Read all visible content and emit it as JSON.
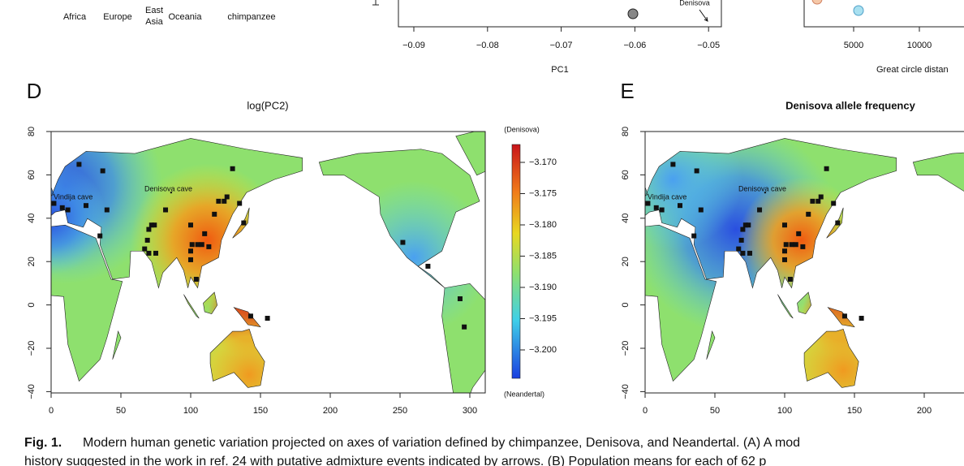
{
  "top": {
    "legend": [
      "Africa",
      "Europe",
      [
        "East",
        "Asia"
      ],
      "Oceania",
      "chimpanzee"
    ],
    "pc_panel": {
      "ticks": [
        "−0.09",
        "−0.08",
        "−0.07",
        "−0.06",
        "−0.05"
      ],
      "axis_label": "PC1",
      "annotation": "Denisova"
    },
    "dist_panel": {
      "ticks": [
        "5000",
        "10000"
      ],
      "axis_label": "Great circle distan"
    }
  },
  "panels": [
    {
      "letter": "D",
      "title": "log(PC2)",
      "x_ticks": [
        "0",
        "50",
        "100",
        "150",
        "200",
        "250",
        "300"
      ],
      "y_ticks": [
        "80",
        "60",
        "40",
        "20",
        "0",
        "−20",
        "−40"
      ],
      "annotations": [
        "Vindija cave",
        "Denisova cave"
      ],
      "colorbar": {
        "top_label": "(Denisova)",
        "ticks": [
          "−3.170",
          "−3.175",
          "−3.180",
          "−3.185",
          "−3.190",
          "−3.195",
          "−3.200"
        ],
        "bottom_label": "(Neandertal)"
      }
    },
    {
      "letter": "E",
      "title": "Denisova allele frequency",
      "x_ticks": [
        "0",
        "50",
        "100",
        "150",
        "200"
      ],
      "y_ticks": [
        "80",
        "60",
        "40",
        "20",
        "0",
        "−20",
        "−40"
      ],
      "annotations": [
        "Vindija cave",
        "Denisova cave"
      ]
    }
  ],
  "caption": {
    "label": "Fig. 1.",
    "lines": [
      "Modern human genetic variation projected on axes of variation defined by chimpanzee, Denisova, and Neandertal. (A) A mod",
      "history suggested in the work in ref. 24 with putative admixture events indicated by arrows. (B) Population means for each of 62 p"
    ]
  }
}
